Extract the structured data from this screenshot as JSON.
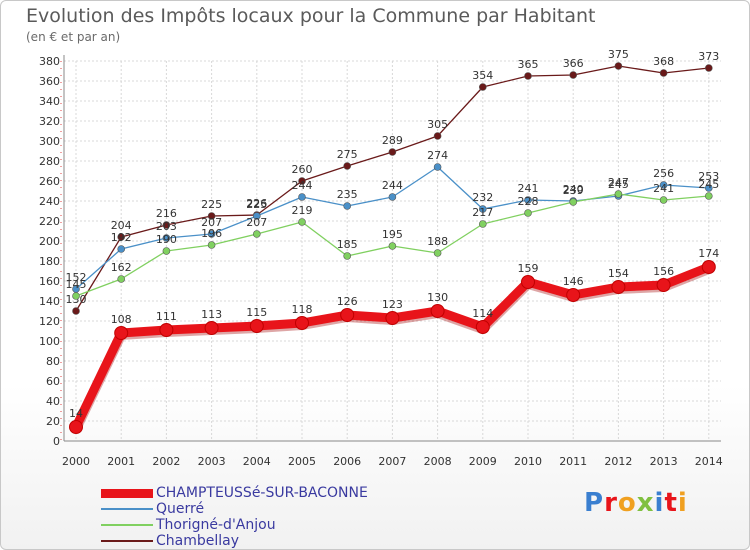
{
  "chart_data": {
    "type": "line",
    "title": "Evolution des Impôts locaux pour la Commune par Habitant",
    "subtitle": "(en € et par an)",
    "xlabel": "",
    "ylabel": "",
    "ylim": [
      0,
      380
    ],
    "yticks": [
      0,
      20,
      40,
      60,
      80,
      100,
      120,
      140,
      160,
      180,
      200,
      220,
      240,
      260,
      280,
      300,
      320,
      340,
      360,
      380
    ],
    "categories": [
      "2000",
      "2001",
      "2002",
      "2003",
      "2004",
      "2005",
      "2006",
      "2007",
      "2008",
      "2009",
      "2010",
      "2011",
      "2012",
      "2013",
      "2014"
    ],
    "grid": true,
    "legend_position": "bottom-left",
    "series": [
      {
        "name": "CHAMPTEUSSé-SUR-BACONNE",
        "color": "#e8141a",
        "values": [
          14,
          108,
          111,
          113,
          115,
          118,
          126,
          123,
          130,
          114,
          159,
          146,
          154,
          156,
          174
        ]
      },
      {
        "name": "Querré",
        "color": "#4a90c8",
        "values": [
          152,
          192,
          203,
          207,
          225,
          244,
          235,
          244,
          274,
          232,
          241,
          240,
          245,
          256,
          253
        ]
      },
      {
        "name": "Thorigné-d'Anjou",
        "color": "#80d060",
        "values": [
          145,
          162,
          190,
          196,
          207,
          219,
          185,
          195,
          188,
          217,
          228,
          239,
          247,
          241,
          245
        ]
      },
      {
        "name": "Chambellay",
        "color": "#6a1a1a",
        "values": [
          130,
          204,
          216,
          225,
          226,
          260,
          275,
          289,
          305,
          354,
          365,
          366,
          375,
          368,
          373
        ]
      }
    ]
  },
  "logo": {
    "text": "Proxiti"
  }
}
